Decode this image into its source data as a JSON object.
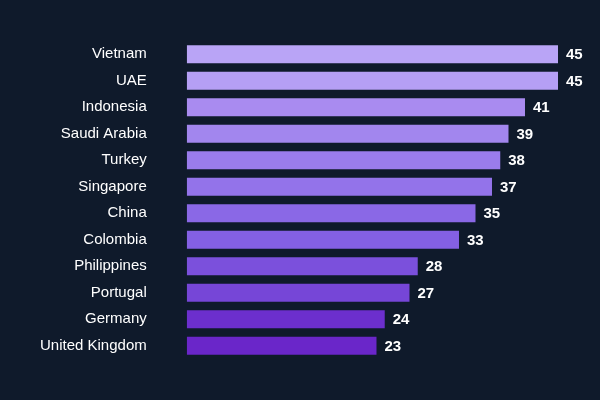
{
  "chart_data": {
    "type": "bar",
    "orientation": "horizontal",
    "categories": [
      "Vietnam",
      "UAE",
      "Indonesia",
      "Saudi Arabia",
      "Turkey",
      "Singapore",
      "China",
      "Colombia",
      "Philippines",
      "Portugal",
      "Germany",
      "United Kingdom"
    ],
    "values": [
      45,
      45,
      41,
      39,
      38,
      37,
      35,
      33,
      28,
      27,
      24,
      23
    ],
    "colors": [
      "#b9a4f6",
      "#b59ff5",
      "#a98bf0",
      "#a286ee",
      "#9a7cec",
      "#9373ea",
      "#8a68e6",
      "#8460e4",
      "#7b50dc",
      "#7646d7",
      "#6c2fcd",
      "#6a26c9"
    ],
    "xlim": [
      0,
      45
    ],
    "grid": false,
    "data_labels": true,
    "tick_labels": "y"
  }
}
